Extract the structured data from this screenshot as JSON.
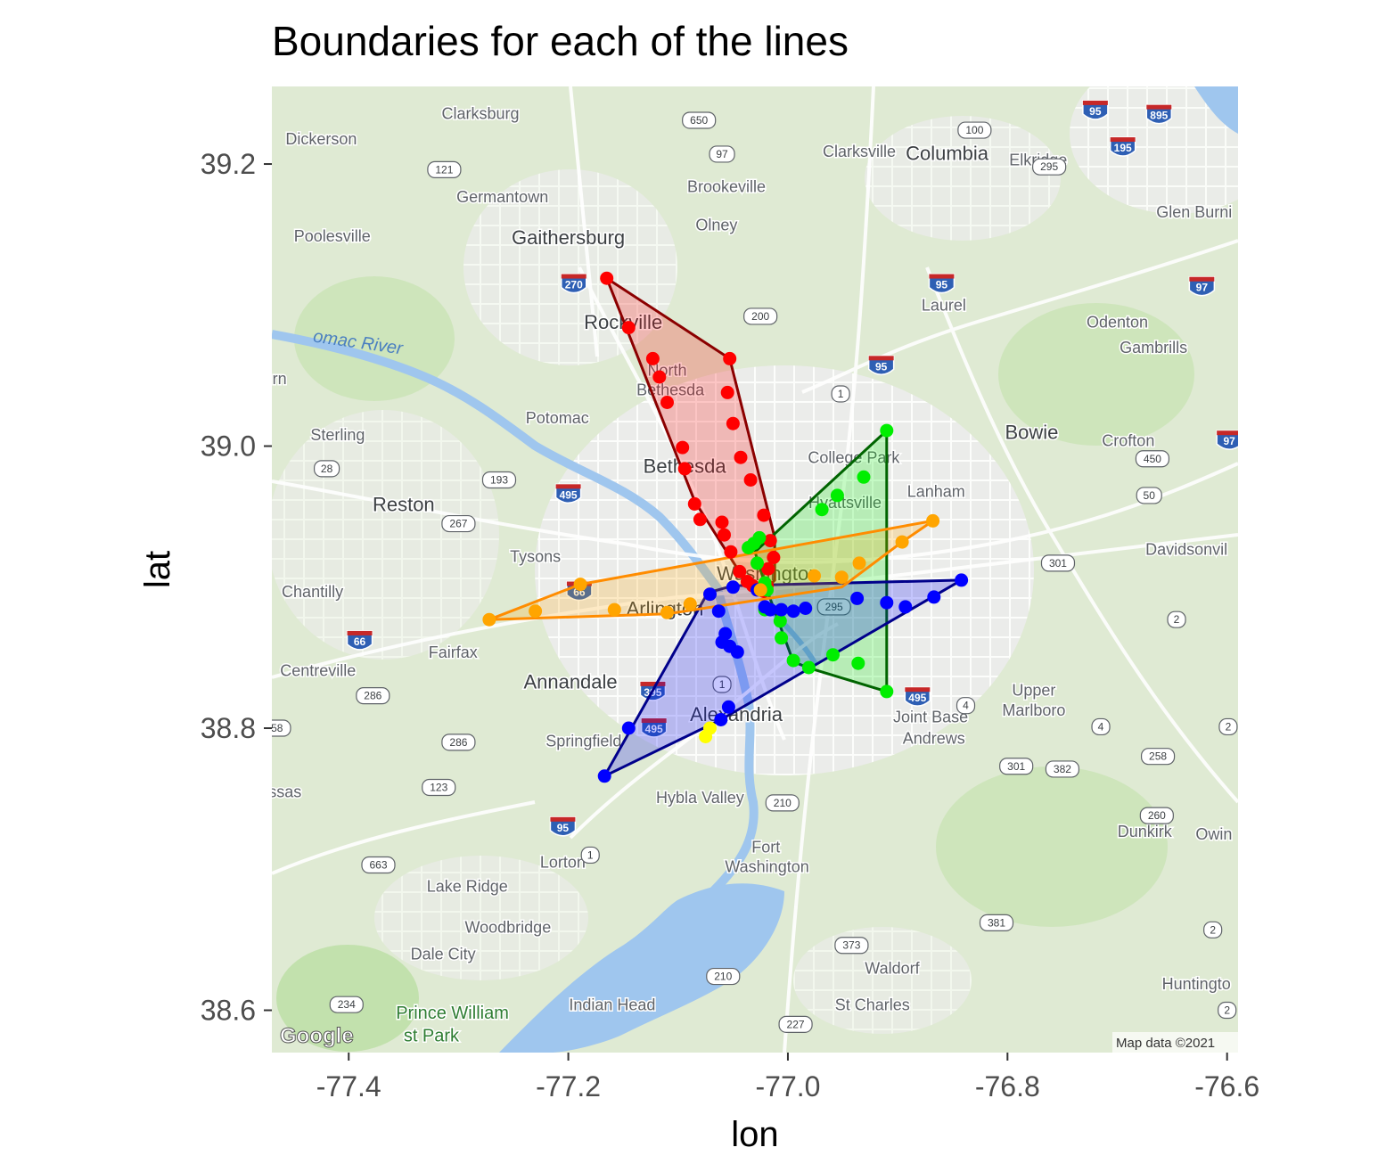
{
  "chart_data": {
    "type": "map",
    "title": "Boundaries for each of the lines",
    "xlabel": "lon",
    "ylabel": "lat",
    "xlim": [
      -77.47,
      -76.59
    ],
    "ylim": [
      38.57,
      39.255
    ],
    "x_ticks": [
      -77.4,
      -77.2,
      -77.0,
      -76.8,
      -76.6
    ],
    "x_tick_labels": [
      "-77.4",
      "-77.2",
      "-77.0",
      "-76.8",
      "-76.6"
    ],
    "y_ticks": [
      38.6,
      38.8,
      39.0,
      39.2
    ],
    "y_tick_labels": [
      "38.6",
      "38.8",
      "39.0",
      "39.2"
    ],
    "basemap_attribution": "Map data ©2021",
    "basemap_logo": "Google",
    "series": [
      {
        "color": "#ff0000",
        "hull_color": "#8b0000",
        "points": [
          [
            -77.165,
            39.119
          ],
          [
            -77.145,
            39.084
          ],
          [
            -77.123,
            39.062
          ],
          [
            -77.117,
            39.049
          ],
          [
            -77.11,
            39.031
          ],
          [
            -77.096,
            38.999
          ],
          [
            -77.094,
            38.984
          ],
          [
            -77.085,
            38.959
          ],
          [
            -77.08,
            38.948
          ],
          [
            -77.06,
            38.946
          ],
          [
            -77.058,
            38.937
          ],
          [
            -77.052,
            38.925
          ],
          [
            -77.044,
            38.911
          ],
          [
            -77.037,
            38.904
          ],
          [
            -77.032,
            38.901
          ],
          [
            -77.022,
            38.897
          ],
          [
            -77.019,
            38.901
          ],
          [
            -77.018,
            38.913
          ],
          [
            -77.013,
            38.921
          ],
          [
            -77.016,
            38.933
          ],
          [
            -77.022,
            38.951
          ],
          [
            -77.034,
            38.976
          ],
          [
            -77.043,
            38.992
          ],
          [
            -77.05,
            39.016
          ],
          [
            -77.055,
            39.038
          ],
          [
            -77.053,
            39.062
          ]
        ],
        "hull": [
          [
            -77.165,
            39.119
          ],
          [
            -77.053,
            39.062
          ],
          [
            -77.012,
            38.935
          ],
          [
            -77.012,
            38.905
          ],
          [
            -77.022,
            38.897
          ],
          [
            -77.037,
            38.902
          ],
          [
            -77.085,
            38.961
          ],
          [
            -77.165,
            39.119
          ]
        ]
      },
      {
        "color": "#00ee00",
        "hull_color": "#006400",
        "points": [
          [
            -76.91,
            39.011
          ],
          [
            -76.931,
            38.978
          ],
          [
            -76.955,
            38.965
          ],
          [
            -76.969,
            38.955
          ],
          [
            -77.026,
            38.935
          ],
          [
            -77.031,
            38.931
          ],
          [
            -77.036,
            38.928
          ],
          [
            -77.028,
            38.917
          ],
          [
            -77.021,
            38.903
          ],
          [
            -77.019,
            38.898
          ],
          [
            -77.021,
            38.884
          ],
          [
            -77.007,
            38.876
          ],
          [
            -77.006,
            38.864
          ],
          [
            -76.995,
            38.848
          ],
          [
            -76.981,
            38.843
          ],
          [
            -76.959,
            38.852
          ],
          [
            -76.936,
            38.846
          ],
          [
            -76.91,
            38.826
          ]
        ],
        "hull": [
          [
            -76.91,
            39.011
          ],
          [
            -77.03,
            38.925
          ],
          [
            -77.02,
            38.9
          ],
          [
            -76.995,
            38.847
          ],
          [
            -76.978,
            38.842
          ],
          [
            -76.91,
            38.826
          ],
          [
            -76.91,
            39.011
          ]
        ]
      },
      {
        "color": "#0000ff",
        "hull_color": "#00008b",
        "points": [
          [
            -76.842,
            38.905
          ],
          [
            -76.867,
            38.893
          ],
          [
            -76.893,
            38.886
          ],
          [
            -76.91,
            38.889
          ],
          [
            -76.937,
            38.892
          ],
          [
            -76.984,
            38.885
          ],
          [
            -76.995,
            38.883
          ],
          [
            -77.006,
            38.884
          ],
          [
            -77.016,
            38.884
          ],
          [
            -77.021,
            38.886
          ],
          [
            -77.028,
            38.898
          ],
          [
            -77.05,
            38.9
          ],
          [
            -77.071,
            38.895
          ],
          [
            -77.063,
            38.883
          ],
          [
            -77.057,
            38.867
          ],
          [
            -77.06,
            38.861
          ],
          [
            -77.053,
            38.858
          ],
          [
            -77.046,
            38.854
          ],
          [
            -77.054,
            38.815
          ],
          [
            -77.061,
            38.806
          ],
          [
            -77.145,
            38.8
          ],
          [
            -77.167,
            38.766
          ]
        ],
        "hull": [
          [
            -76.842,
            38.905
          ],
          [
            -77.05,
            38.901
          ],
          [
            -77.073,
            38.896
          ],
          [
            -77.167,
            38.766
          ],
          [
            -77.061,
            38.806
          ],
          [
            -76.842,
            38.905
          ]
        ]
      },
      {
        "color": "#ffa500",
        "hull_color": "#ff8c00",
        "points": [
          [
            -77.272,
            38.877
          ],
          [
            -77.23,
            38.883
          ],
          [
            -77.189,
            38.902
          ],
          [
            -77.158,
            38.884
          ],
          [
            -77.11,
            38.882
          ],
          [
            -77.089,
            38.888
          ],
          [
            -77.025,
            38.898
          ],
          [
            -76.976,
            38.908
          ],
          [
            -76.951,
            38.907
          ],
          [
            -76.935,
            38.917
          ],
          [
            -76.896,
            38.932
          ],
          [
            -76.868,
            38.947
          ]
        ],
        "hull": [
          [
            -77.272,
            38.877
          ],
          [
            -77.189,
            38.902
          ],
          [
            -76.868,
            38.947
          ],
          [
            -76.896,
            38.932
          ],
          [
            -76.951,
            38.9
          ],
          [
            -77.11,
            38.881
          ],
          [
            -77.272,
            38.877
          ]
        ]
      },
      {
        "color": "#ffff00",
        "hull_color": "#ffd700",
        "points": [
          [
            -77.075,
            38.794
          ],
          [
            -77.071,
            38.8
          ]
        ],
        "hull": [
          [
            -77.075,
            38.794
          ],
          [
            -77.071,
            38.8
          ]
        ]
      }
    ]
  },
  "basemap": {
    "places": [
      {
        "name": "Clarksburg",
        "lon": -77.28,
        "lat": 39.232,
        "size": "small"
      },
      {
        "name": "Dickerson",
        "lon": -77.425,
        "lat": 39.214,
        "size": "small"
      },
      {
        "name": "Germantown",
        "lon": -77.26,
        "lat": 39.173,
        "size": "small"
      },
      {
        "name": "Gaithersburg",
        "lon": -77.2,
        "lat": 39.143,
        "size": "big"
      },
      {
        "name": "Poolesville",
        "lon": -77.415,
        "lat": 39.145,
        "size": "small"
      },
      {
        "name": "Brookeville",
        "lon": -77.056,
        "lat": 39.18,
        "size": "small"
      },
      {
        "name": "Olney",
        "lon": -77.065,
        "lat": 39.153,
        "size": "small"
      },
      {
        "name": "Clarksville",
        "lon": -76.935,
        "lat": 39.205,
        "size": "small"
      },
      {
        "name": "Columbia",
        "lon": -76.855,
        "lat": 39.203,
        "size": "big"
      },
      {
        "name": "Elkridge",
        "lon": -76.772,
        "lat": 39.199,
        "size": "small"
      },
      {
        "name": "Glen Burni",
        "lon": -76.63,
        "lat": 39.162,
        "size": "small"
      },
      {
        "name": "Laurel",
        "lon": -76.858,
        "lat": 39.096,
        "size": "small"
      },
      {
        "name": "Odenton",
        "lon": -76.7,
        "lat": 39.084,
        "size": "small"
      },
      {
        "name": "Gambrills",
        "lon": -76.667,
        "lat": 39.066,
        "size": "small"
      },
      {
        "name": "Rockville",
        "lon": -77.15,
        "lat": 39.083,
        "size": "big"
      },
      {
        "name": "North",
        "lon": -77.11,
        "lat": 39.05,
        "size": "small"
      },
      {
        "name": "Bethesda",
        "lon": -77.107,
        "lat": 39.036,
        "size": "small"
      },
      {
        "name": "Potomac",
        "lon": -77.21,
        "lat": 39.016,
        "size": "small"
      },
      {
        "name": "Sterling",
        "lon": -77.41,
        "lat": 39.004,
        "size": "small"
      },
      {
        "name": "Bowie",
        "lon": -76.778,
        "lat": 39.005,
        "size": "big"
      },
      {
        "name": "Crofton",
        "lon": -76.69,
        "lat": 39.0,
        "size": "small"
      },
      {
        "name": "College Park",
        "lon": -76.94,
        "lat": 38.988,
        "size": "small"
      },
      {
        "name": "Bethesda",
        "lon": -77.094,
        "lat": 38.981,
        "size": "big"
      },
      {
        "name": "Lanham",
        "lon": -76.865,
        "lat": 38.964,
        "size": "small"
      },
      {
        "name": "Hyattsville",
        "lon": -76.948,
        "lat": 38.956,
        "size": "small"
      },
      {
        "name": "Reston",
        "lon": -77.35,
        "lat": 38.954,
        "size": "big"
      },
      {
        "name": "Tysons",
        "lon": -77.23,
        "lat": 38.918,
        "size": "small"
      },
      {
        "name": "Davidsonvil",
        "lon": -76.637,
        "lat": 38.923,
        "size": "small"
      },
      {
        "name": "Washington",
        "lon": -77.018,
        "lat": 38.905,
        "size": "big"
      },
      {
        "name": "Chantilly",
        "lon": -77.433,
        "lat": 38.893,
        "size": "small"
      },
      {
        "name": "Arlington",
        "lon": -77.112,
        "lat": 38.88,
        "size": "big"
      },
      {
        "name": "Fairfax",
        "lon": -77.305,
        "lat": 38.85,
        "size": "small"
      },
      {
        "name": "Centreville",
        "lon": -77.428,
        "lat": 38.837,
        "size": "small"
      },
      {
        "name": "Annandale",
        "lon": -77.198,
        "lat": 38.828,
        "size": "big"
      },
      {
        "name": "Upper",
        "lon": -76.776,
        "lat": 38.823,
        "size": "small"
      },
      {
        "name": "Marlboro",
        "lon": -76.776,
        "lat": 38.809,
        "size": "small"
      },
      {
        "name": "Alexandria",
        "lon": -77.047,
        "lat": 38.805,
        "size": "big"
      },
      {
        "name": "Joint Base",
        "lon": -76.87,
        "lat": 38.804,
        "size": "small"
      },
      {
        "name": "Andrews",
        "lon": -76.867,
        "lat": 38.789,
        "size": "small"
      },
      {
        "name": "Springfield",
        "lon": -77.186,
        "lat": 38.787,
        "size": "small"
      },
      {
        "name": "ssas",
        "lon": -77.458,
        "lat": 38.751,
        "size": "small"
      },
      {
        "name": "Hybla Valley",
        "lon": -77.08,
        "lat": 38.747,
        "size": "small"
      },
      {
        "name": "Dunkirk",
        "lon": -76.675,
        "lat": 38.723,
        "size": "small"
      },
      {
        "name": "Owin",
        "lon": -76.612,
        "lat": 38.721,
        "size": "small"
      },
      {
        "name": "Fort",
        "lon": -77.02,
        "lat": 38.712,
        "size": "small"
      },
      {
        "name": "Washington",
        "lon": -77.019,
        "lat": 38.698,
        "size": "small"
      },
      {
        "name": "Lorton",
        "lon": -77.205,
        "lat": 38.701,
        "size": "small"
      },
      {
        "name": "Lake Ridge",
        "lon": -77.292,
        "lat": 38.684,
        "size": "small"
      },
      {
        "name": "Woodbridge",
        "lon": -77.255,
        "lat": 38.655,
        "size": "small"
      },
      {
        "name": "Dale City",
        "lon": -77.314,
        "lat": 0,
        "size": "small"
      },
      {
        "name": "Waldorf",
        "lon": -76.905,
        "lat": 38.626,
        "size": "small"
      },
      {
        "name": "Huntingto",
        "lon": -76.628,
        "lat": 38.615,
        "size": "small"
      },
      {
        "name": "Indian Head",
        "lon": -77.16,
        "lat": 38.6,
        "size": "small"
      },
      {
        "name": "St Charles",
        "lon": -76.923,
        "lat": 38.6,
        "size": "small"
      }
    ],
    "extra_places": [
      {
        "name": "Dale City",
        "lon": -77.314,
        "lat": 38.636,
        "size": "small"
      },
      {
        "name": "rn",
        "lon": -77.463,
        "lat": 39.044,
        "size": "small"
      }
    ],
    "interstates": [
      {
        "num": "270",
        "lon": -77.195,
        "lat": 39.115
      },
      {
        "num": "95",
        "lon": -76.86,
        "lat": 39.115
      },
      {
        "num": "95",
        "lon": -76.915,
        "lat": 39.057
      },
      {
        "num": "95",
        "lon": -76.72,
        "lat": 39.238
      },
      {
        "num": "895",
        "lon": -76.662,
        "lat": 39.235
      },
      {
        "num": "195",
        "lon": -76.695,
        "lat": 39.212
      },
      {
        "num": "97",
        "lon": -76.623,
        "lat": 39.113
      },
      {
        "num": "97",
        "lon": -76.598,
        "lat": 39.004
      },
      {
        "num": "495",
        "lon": -77.2,
        "lat": 38.966
      },
      {
        "num": "66",
        "lon": -77.19,
        "lat": 38.897
      },
      {
        "num": "66",
        "lon": -77.39,
        "lat": 38.862
      },
      {
        "num": "395",
        "lon": -77.123,
        "lat": 38.826
      },
      {
        "num": "495",
        "lon": -77.122,
        "lat": 38.8
      },
      {
        "num": "495",
        "lon": -76.882,
        "lat": 38.822
      },
      {
        "num": "95",
        "lon": -77.205,
        "lat": 38.73
      }
    ],
    "routes": [
      {
        "num": "650",
        "lon": -77.081,
        "lat": 39.231
      },
      {
        "num": "100",
        "lon": -76.83,
        "lat": 39.224
      },
      {
        "num": "97",
        "lon": -77.06,
        "lat": 39.207
      },
      {
        "num": "121",
        "lon": -77.313,
        "lat": 39.196
      },
      {
        "num": "295",
        "lon": -76.762,
        "lat": 39.198
      },
      {
        "num": "200",
        "lon": -77.025,
        "lat": 39.092
      },
      {
        "num": "28",
        "lon": -77.42,
        "lat": 38.984
      },
      {
        "num": "193",
        "lon": -77.263,
        "lat": 38.976
      },
      {
        "num": "450",
        "lon": -76.668,
        "lat": 38.991
      },
      {
        "num": "50",
        "lon": -76.671,
        "lat": 38.965
      },
      {
        "num": "267",
        "lon": -77.3,
        "lat": 38.945
      },
      {
        "num": "301",
        "lon": -76.754,
        "lat": 38.917
      },
      {
        "num": "2",
        "lon": -76.646,
        "lat": 38.877
      },
      {
        "num": "295",
        "lon": -76.958,
        "lat": 38.886
      },
      {
        "num": "286",
        "lon": -77.378,
        "lat": 38.823
      },
      {
        "num": "4",
        "lon": -76.838,
        "lat": 38.816
      },
      {
        "num": "658",
        "lon": -77.468,
        "lat": 38.8
      },
      {
        "num": "286",
        "lon": -77.3,
        "lat": 38.79
      },
      {
        "num": "4",
        "lon": -76.715,
        "lat": 38.801
      },
      {
        "num": "2",
        "lon": -76.599,
        "lat": 38.801
      },
      {
        "num": "258",
        "lon": -76.663,
        "lat": 38.78
      },
      {
        "num": "301",
        "lon": -76.792,
        "lat": 38.773
      },
      {
        "num": "382",
        "lon": -76.75,
        "lat": 38.771
      },
      {
        "num": "123",
        "lon": -77.318,
        "lat": 38.758
      },
      {
        "num": "210",
        "lon": -77.005,
        "lat": 38.747
      },
      {
        "num": "260",
        "lon": -76.664,
        "lat": 38.738
      },
      {
        "num": "1",
        "lon": -77.06,
        "lat": 38.831
      },
      {
        "num": "1",
        "lon": -76.952,
        "lat": 39.037
      },
      {
        "num": "1",
        "lon": -77.18,
        "lat": 38.71
      },
      {
        "num": "663",
        "lon": -77.373,
        "lat": 38.703
      },
      {
        "num": "381",
        "lon": -76.81,
        "lat": 38.662
      },
      {
        "num": "2",
        "lon": -76.613,
        "lat": 38.657
      },
      {
        "num": "373",
        "lon": -76.942,
        "lat": 38.646
      },
      {
        "num": "210",
        "lon": -77.059,
        "lat": 38.624
      },
      {
        "num": "234",
        "lon": -77.402,
        "lat": 38.604
      },
      {
        "num": "227",
        "lon": -76.993,
        "lat": 38.59
      },
      {
        "num": "2",
        "lon": -76.6,
        "lat": 38.6
      }
    ],
    "river_labels": [
      {
        "text": "omac River",
        "lon": -77.433,
        "lat": 39.074
      }
    ],
    "park_labels": [
      {
        "text": "Prince William",
        "lon": -77.357,
        "lat": 38.594
      },
      {
        "text": "st Park",
        "lon": -77.35,
        "lat": 38.578
      }
    ]
  }
}
